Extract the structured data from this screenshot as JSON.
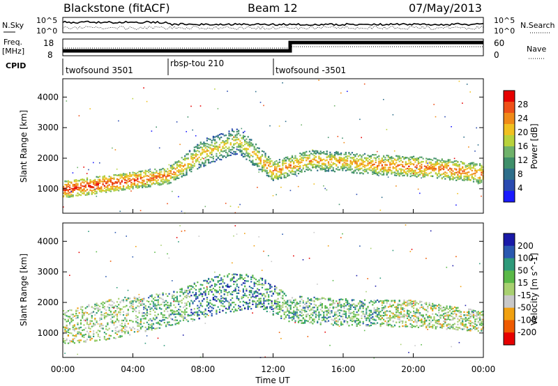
{
  "header": {
    "station": "Blackstone (fitACF)",
    "beam": "Beam 12",
    "date": "07/May/2013"
  },
  "top_panels": {
    "nsky_label": "N.Sky",
    "nsearch_label": "N.Search",
    "nsky_ticks": [
      "10^5",
      "10^0"
    ],
    "freq_label_line1": "Freq.",
    "freq_label_line2": "[MHz]",
    "freq_ticks": [
      "18",
      "8"
    ],
    "nave_label": "Nave",
    "nave_ticks": [
      "60",
      "0"
    ],
    "cpid_label": "CPID",
    "cpid_segments": [
      {
        "name": "twofsound 3501",
        "start_hour": 0
      },
      {
        "name": "rbsp-tou 210",
        "start_hour": 6
      },
      {
        "name": "twofsound -3501",
        "start_hour": 12
      }
    ]
  },
  "colors": {
    "power_scale": [
      "#1a1aff",
      "#2a4ab0",
      "#2e6e8a",
      "#3f8f6a",
      "#6fb26a",
      "#b8d23c",
      "#f0c020",
      "#f08a18",
      "#ee5018",
      "#e60000"
    ],
    "velocity_scale": [
      "#e60000",
      "#ee5a00",
      "#f0a010",
      "#c8c8c8",
      "#a8d070",
      "#5ab848",
      "#2e9a7a",
      "#2a58b0",
      "#1a1aa8"
    ]
  },
  "chart_data": [
    {
      "type": "heatmap",
      "panel": "power",
      "xlabel": "",
      "ylabel": "Slant Range [km]",
      "x_tick_labels": [
        "00:00",
        "04:00",
        "08:00",
        "12:00",
        "16:00",
        "20:00",
        "00:00"
      ],
      "xlim_hours": [
        0,
        24
      ],
      "y_ticks": [
        1000,
        2000,
        3000,
        4000
      ],
      "ylim": [
        200,
        4600
      ],
      "colorbar": {
        "label": "Power [dB]",
        "ticks": [
          4,
          8,
          12,
          16,
          20,
          24,
          28
        ],
        "range": [
          0,
          32
        ]
      },
      "echo_bands": [
        {
          "hour": 0,
          "center_km": 1000,
          "width_km": 250,
          "value": 28
        },
        {
          "hour": 2,
          "center_km": 1150,
          "width_km": 250,
          "value": 28
        },
        {
          "hour": 4,
          "center_km": 1300,
          "width_km": 250,
          "value": 27
        },
        {
          "hour": 6,
          "center_km": 1450,
          "width_km": 250,
          "value": 24
        },
        {
          "hour": 8,
          "center_km": 2200,
          "width_km": 400,
          "value": 20
        },
        {
          "hour": 10,
          "center_km": 2600,
          "width_km": 400,
          "value": 18
        },
        {
          "hour": 12,
          "center_km": 1600,
          "width_km": 300,
          "value": 24
        },
        {
          "hour": 14,
          "center_km": 1950,
          "width_km": 300,
          "value": 22
        },
        {
          "hour": 16,
          "center_km": 1900,
          "width_km": 300,
          "value": 22
        },
        {
          "hour": 18,
          "center_km": 1800,
          "width_km": 300,
          "value": 24
        },
        {
          "hour": 20,
          "center_km": 1750,
          "width_km": 300,
          "value": 25
        },
        {
          "hour": 22,
          "center_km": 1650,
          "width_km": 300,
          "value": 25
        },
        {
          "hour": 24,
          "center_km": 1500,
          "width_km": 300,
          "value": 24
        }
      ]
    },
    {
      "type": "heatmap",
      "panel": "velocity",
      "xlabel": "Time UT",
      "ylabel": "Slant Range [km]",
      "x_tick_labels": [
        "00:00",
        "04:00",
        "08:00",
        "12:00",
        "16:00",
        "20:00",
        "00:00"
      ],
      "xlim_hours": [
        0,
        24
      ],
      "y_ticks": [
        1000,
        2000,
        3000,
        4000
      ],
      "ylim": [
        200,
        4600
      ],
      "colorbar": {
        "label": "Velocity [m s^-1]",
        "ticks": [
          200,
          100,
          50,
          15,
          -15,
          -50,
          -100,
          -200
        ]
      },
      "echo_bands": [
        {
          "hour": 0,
          "center_km": 1200,
          "width_km": 500,
          "value": -15
        },
        {
          "hour": 3,
          "center_km": 1500,
          "width_km": 600,
          "value": -15
        },
        {
          "hour": 6,
          "center_km": 1800,
          "width_km": 500,
          "value": 15
        },
        {
          "hour": 9,
          "center_km": 2300,
          "width_km": 600,
          "value": 50
        },
        {
          "hour": 11,
          "center_km": 2400,
          "width_km": 500,
          "value": 50
        },
        {
          "hour": 13,
          "center_km": 1800,
          "width_km": 400,
          "value": 15
        },
        {
          "hour": 16,
          "center_km": 1700,
          "width_km": 400,
          "value": 15
        },
        {
          "hour": 20,
          "center_km": 1650,
          "width_km": 400,
          "value": -15
        },
        {
          "hour": 24,
          "center_km": 1400,
          "width_km": 300,
          "value": -15
        }
      ]
    }
  ]
}
